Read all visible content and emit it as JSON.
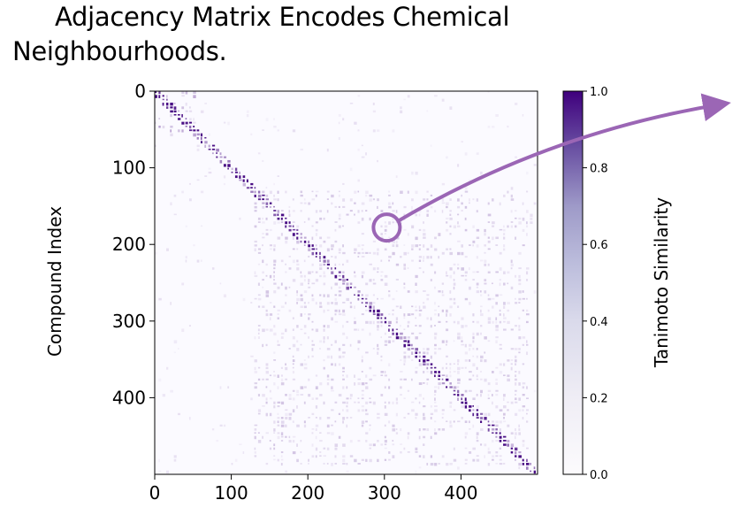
{
  "title": {
    "line1": "Adjacency Matrix Encodes Chemical",
    "line2": "Neighbourhoods."
  },
  "colors": {
    "cmap_low": "#fbfaff",
    "cmap_high": "#3f007d",
    "annotation": "#9b66b5",
    "axis": "#000000"
  },
  "chart_data": {
    "type": "heatmap",
    "title": "Adjacency Matrix Encodes Chemical Neighbourhoods.",
    "xlabel": "",
    "ylabel": "Compound Index",
    "xlim": [
      0,
      499
    ],
    "ylim": [
      499,
      0
    ],
    "x_ticks": [
      0,
      100,
      200,
      300,
      400
    ],
    "y_ticks": [
      0,
      100,
      200,
      300,
      400
    ],
    "x_tick_labels": [
      "0",
      "100",
      "200",
      "300",
      "400"
    ],
    "y_tick_labels": [
      "0",
      "100",
      "200",
      "300",
      "400"
    ],
    "matrix_size": 500,
    "colorbar": {
      "label": "Tanimoto Similarity",
      "range": [
        0.0,
        1.0
      ],
      "ticks": [
        0.0,
        0.2,
        0.4,
        0.6,
        0.8,
        1.0
      ],
      "tick_labels": [
        "0.0",
        "0.2",
        "0.4",
        "0.6",
        "0.8",
        "1.0"
      ],
      "colormap": "Purples"
    },
    "cluster_blocks": [
      {
        "start": 0,
        "end": 55,
        "similarity": 0.35
      },
      {
        "start": 130,
        "end": 490,
        "similarity": 0.25
      }
    ],
    "annotation": {
      "type": "circle-with-arrow",
      "center": [
        303,
        178
      ],
      "arrow_direction": "up-right"
    }
  }
}
